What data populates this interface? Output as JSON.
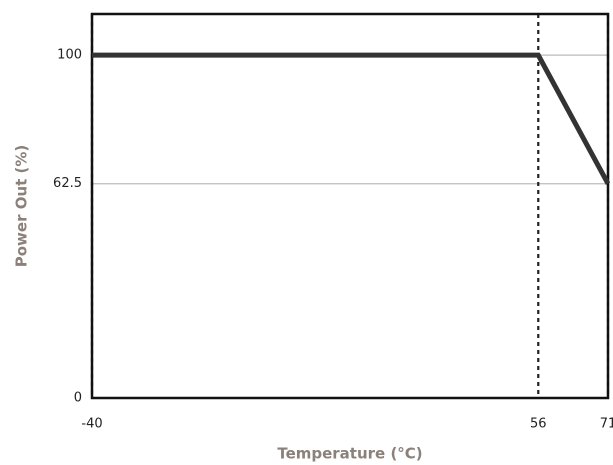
{
  "chart_data": {
    "type": "line",
    "x_label": "Temperature (°C)",
    "y_label": "Power Out (%)",
    "x": [
      -40,
      56,
      71
    ],
    "series": [
      {
        "color": "#333333",
        "values": [
          100,
          100,
          62.5
        ]
      }
    ],
    "xlim": [
      -40,
      71
    ],
    "xticks": [
      -40,
      56,
      71
    ],
    "ylim": [
      0,
      112
    ],
    "yticks": [
      0,
      62.5,
      100
    ],
    "grid": true,
    "xgrid_style": "dotted"
  }
}
